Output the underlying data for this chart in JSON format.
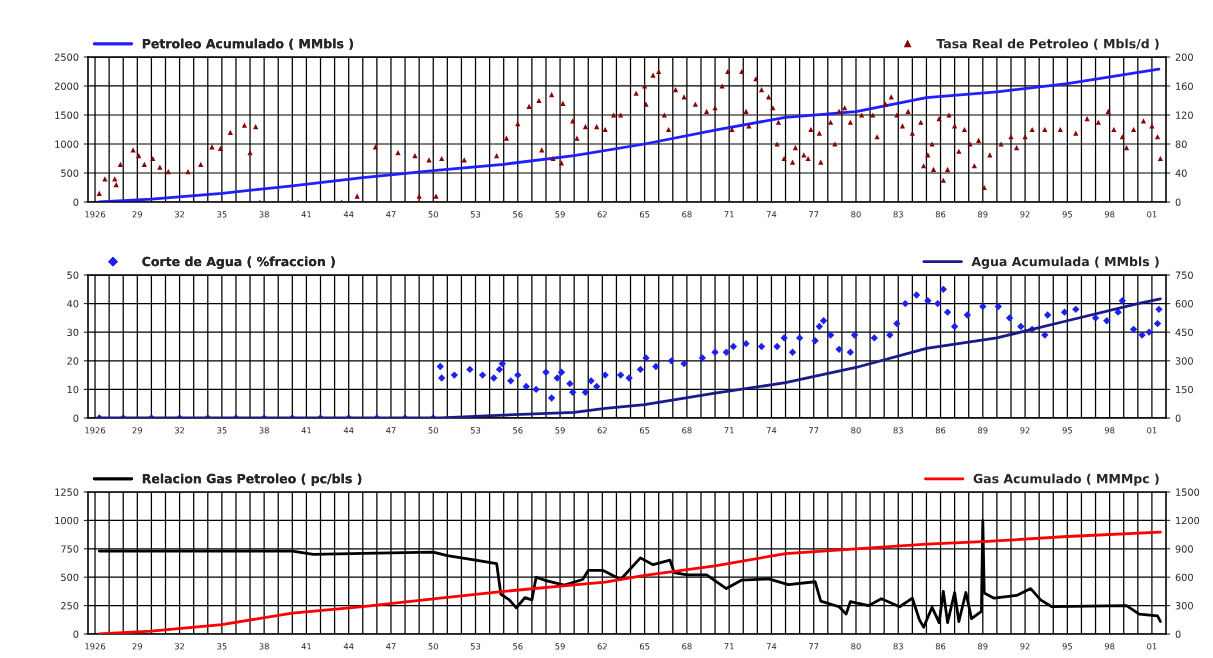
{
  "chart_data": [
    {
      "type": "line",
      "xlim": [
        1925.5,
        2002
      ],
      "ylim": [
        0,
        2500
      ],
      "yticks": [
        0,
        500,
        1000,
        1500,
        2000,
        2500
      ],
      "y2lim": [
        0,
        200
      ],
      "y2ticks": [
        0,
        40,
        80,
        120,
        160,
        200
      ],
      "grid": true,
      "legend": "top",
      "xticks": [
        {
          "value": 1926,
          "label": "1926"
        },
        {
          "value": 1927,
          "label": null
        },
        {
          "value": 1928,
          "label": null
        },
        {
          "value": 1929,
          "label": "29"
        },
        {
          "value": 1930,
          "label": null
        },
        {
          "value": 1931,
          "label": null
        },
        {
          "value": 1932,
          "label": "32"
        },
        {
          "value": 1933,
          "label": null
        },
        {
          "value": 1934,
          "label": null
        },
        {
          "value": 1935,
          "label": "35"
        },
        {
          "value": 1936,
          "label": null
        },
        {
          "value": 1937,
          "label": null
        },
        {
          "value": 1938,
          "label": "38"
        },
        {
          "value": 1939,
          "label": null
        },
        {
          "value": 1940,
          "label": null
        },
        {
          "value": 1941,
          "label": "41"
        },
        {
          "value": 1942,
          "label": null
        },
        {
          "value": 1943,
          "label": null
        },
        {
          "value": 1944,
          "label": "44"
        },
        {
          "value": 1945,
          "label": null
        },
        {
          "value": 1946,
          "label": null
        },
        {
          "value": 1947,
          "label": "47"
        },
        {
          "value": 1948,
          "label": null
        },
        {
          "value": 1949,
          "label": null
        },
        {
          "value": 1950,
          "label": "50"
        },
        {
          "value": 1951,
          "label": null
        },
        {
          "value": 1952,
          "label": null
        },
        {
          "value": 1953,
          "label": "53"
        },
        {
          "value": 1954,
          "label": null
        },
        {
          "value": 1955,
          "label": null
        },
        {
          "value": 1956,
          "label": "56"
        },
        {
          "value": 1957,
          "label": null
        },
        {
          "value": 1958,
          "label": null
        },
        {
          "value": 1959,
          "label": "59"
        },
        {
          "value": 1960,
          "label": null
        },
        {
          "value": 1961,
          "label": null
        },
        {
          "value": 1962,
          "label": "62"
        },
        {
          "value": 1963,
          "label": null
        },
        {
          "value": 1964,
          "label": null
        },
        {
          "value": 1965,
          "label": "65"
        },
        {
          "value": 1966,
          "label": null
        },
        {
          "value": 1967,
          "label": null
        },
        {
          "value": 1968,
          "label": "68"
        },
        {
          "value": 1969,
          "label": null
        },
        {
          "value": 1970,
          "label": null
        },
        {
          "value": 1971,
          "label": "71"
        },
        {
          "value": 1972,
          "label": null
        },
        {
          "value": 1973,
          "label": null
        },
        {
          "value": 1974,
          "label": "74"
        },
        {
          "value": 1975,
          "label": null
        },
        {
          "value": 1976,
          "label": null
        },
        {
          "value": 1977,
          "label": "77"
        },
        {
          "value": 1978,
          "label": null
        },
        {
          "value": 1979,
          "label": null
        },
        {
          "value": 1980,
          "label": "80"
        },
        {
          "value": 1981,
          "label": null
        },
        {
          "value": 1982,
          "label": null
        },
        {
          "value": 1983,
          "label": "83"
        },
        {
          "value": 1984,
          "label": null
        },
        {
          "value": 1985,
          "label": null
        },
        {
          "value": 1986,
          "label": "86"
        },
        {
          "value": 1987,
          "label": null
        },
        {
          "value": 1988,
          "label": null
        },
        {
          "value": 1989,
          "label": "89"
        },
        {
          "value": 1990,
          "label": null
        },
        {
          "value": 1991,
          "label": null
        },
        {
          "value": 1992,
          "label": "92"
        },
        {
          "value": 1993,
          "label": null
        },
        {
          "value": 1994,
          "label": null
        },
        {
          "value": 1995,
          "label": "95"
        },
        {
          "value": 1996,
          "label": null
        },
        {
          "value": 1997,
          "label": null
        },
        {
          "value": 1998,
          "label": "98"
        },
        {
          "value": 1999,
          "label": null
        },
        {
          "value": 2000,
          "label": null
        },
        {
          "value": 2001,
          "label": "01"
        }
      ],
      "series": [
        {
          "name": "Petroleo Acumulado ( MMbls )",
          "color": "#1f1fff",
          "line_style": "solid",
          "x": [
            1926.3,
            1930,
            1935,
            1940,
            1945,
            1950,
            1955,
            1960,
            1965,
            1970,
            1975,
            1980,
            1985,
            1990,
            1995,
            2001.5
          ],
          "values": [
            0,
            50,
            150,
            280,
            420,
            540,
            650,
            800,
            1000,
            1240,
            1460,
            1560,
            1800,
            1900,
            2040,
            2290
          ]
        },
        {
          "name": "Tasa Real de Petroleo ( Mbls/d )",
          "type": "scatter",
          "axis": "y2",
          "color": "#8b0000",
          "marker": "triangle",
          "x": [
            1926.3,
            1926.7,
            1927.4,
            1927.5,
            1927.8,
            1928.7,
            1929.1,
            1929.5,
            1930.1,
            1930.6,
            1931.2,
            1932.6,
            1933.5,
            1934.3,
            1934.9,
            1935.6,
            1936.6,
            1937.0,
            1937.4,
            1937.7,
            1940.4,
            1943.5,
            1944.6,
            1945.9,
            1947.5,
            1948.7,
            1949.0,
            1949.7,
            1950.2,
            1950.6,
            1952.2,
            1954.5,
            1955.2,
            1956.0,
            1956.8,
            1957.5,
            1957.7,
            1958.4,
            1958.5,
            1959.1,
            1959.2,
            1959.9,
            1960.2,
            1960.8,
            1961.6,
            1962.2,
            1962.8,
            1963.3,
            1964.4,
            1965.0,
            1965.1,
            1965.6,
            1966.0,
            1966.4,
            1966.7,
            1967.2,
            1967.8,
            1968.6,
            1969.4,
            1970.0,
            1970.5,
            1970.9,
            1971.2,
            1971.9,
            1972.2,
            1972.4,
            1972.9,
            1973.3,
            1973.8,
            1974.1,
            1974.4,
            1974.5,
            1974.9,
            1975.5,
            1975.7,
            1976.3,
            1976.6,
            1976.8,
            1977.4,
            1977.5,
            1978.2,
            1978.5,
            1978.8,
            1979.2,
            1979.6,
            1980.4,
            1981.2,
            1981.5,
            1982.1,
            1982.5,
            1982.9,
            1983.3,
            1983.7,
            1984.0,
            1984.6,
            1984.8,
            1985.1,
            1985.4,
            1985.5,
            1985.9,
            1986.2,
            1986.5,
            1986.6,
            1987.0,
            1987.3,
            1987.7,
            1988.1,
            1988.4,
            1988.7,
            1989.1,
            1989.5,
            1990.3,
            1991.0,
            1991.4,
            1992.0,
            1992.5,
            1993.4,
            1994.5,
            1995.6,
            1996.4,
            1997.2,
            1997.9,
            1998.3,
            1998.9,
            1999.2,
            1999.7,
            2000.4,
            2001.0,
            2001.4,
            2001.6
          ],
          "values": [
            12,
            32,
            32,
            24,
            52,
            72,
            64,
            52,
            60,
            48,
            42,
            42,
            52,
            76,
            74,
            96,
            106,
            68,
            104,
            0,
            0,
            0,
            8,
            76,
            68,
            64,
            8,
            58,
            8,
            60,
            58,
            64,
            88,
            108,
            132,
            140,
            72,
            148,
            60,
            54,
            136,
            112,
            88,
            104,
            104,
            100,
            120,
            120,
            150,
            160,
            135,
            175,
            180,
            120,
            100,
            155,
            145,
            135,
            125,
            130,
            160,
            180,
            100,
            180,
            125,
            105,
            170,
            155,
            145,
            130,
            80,
            110,
            60,
            55,
            75,
            65,
            60,
            100,
            95,
            55,
            110,
            80,
            125,
            130,
            110,
            120,
            120,
            90,
            135,
            145,
            120,
            105,
            125,
            95,
            110,
            50,
            65,
            80,
            45,
            115,
            30,
            45,
            120,
            105,
            70,
            100,
            80,
            50,
            85,
            20,
            65,
            80,
            90,
            75,
            90,
            100,
            100,
            100,
            95,
            115,
            110,
            125,
            100,
            90,
            75,
            100,
            112,
            105,
            90,
            60
          ]
        }
      ]
    },
    {
      "type": "line",
      "xlim": [
        1925.5,
        2002
      ],
      "ylim": [
        0,
        50
      ],
      "yticks": [
        0,
        10,
        20,
        30,
        40,
        50
      ],
      "y2lim": [
        0,
        750
      ],
      "y2ticks": [
        0,
        150,
        300,
        450,
        600,
        750
      ],
      "grid": true,
      "legend": "top",
      "xticks": [
        {
          "value": 1926,
          "label": "1926"
        },
        {
          "value": 1927,
          "label": null
        },
        {
          "value": 1928,
          "label": null
        },
        {
          "value": 1929,
          "label": "29"
        },
        {
          "value": 1930,
          "label": null
        },
        {
          "value": 1931,
          "label": null
        },
        {
          "value": 1932,
          "label": "32"
        },
        {
          "value": 1933,
          "label": null
        },
        {
          "value": 1934,
          "label": null
        },
        {
          "value": 1935,
          "label": "35"
        },
        {
          "value": 1936,
          "label": null
        },
        {
          "value": 1937,
          "label": null
        },
        {
          "value": 1938,
          "label": "38"
        },
        {
          "value": 1939,
          "label": null
        },
        {
          "value": 1940,
          "label": null
        },
        {
          "value": 1941,
          "label": "41"
        },
        {
          "value": 1942,
          "label": null
        },
        {
          "value": 1943,
          "label": null
        },
        {
          "value": 1944,
          "label": "44"
        },
        {
          "value": 1945,
          "label": null
        },
        {
          "value": 1946,
          "label": null
        },
        {
          "value": 1947,
          "label": "47"
        },
        {
          "value": 1948,
          "label": null
        },
        {
          "value": 1949,
          "label": null
        },
        {
          "value": 1950,
          "label": "50"
        },
        {
          "value": 1951,
          "label": null
        },
        {
          "value": 1952,
          "label": null
        },
        {
          "value": 1953,
          "label": "53"
        },
        {
          "value": 1954,
          "label": null
        },
        {
          "value": 1955,
          "label": null
        },
        {
          "value": 1956,
          "label": "56"
        },
        {
          "value": 1957,
          "label": null
        },
        {
          "value": 1958,
          "label": null
        },
        {
          "value": 1959,
          "label": "59"
        },
        {
          "value": 1960,
          "label": null
        },
        {
          "value": 1961,
          "label": null
        },
        {
          "value": 1962,
          "label": "62"
        },
        {
          "value": 1963,
          "label": null
        },
        {
          "value": 1964,
          "label": null
        },
        {
          "value": 1965,
          "label": "65"
        },
        {
          "value": 1966,
          "label": null
        },
        {
          "value": 1967,
          "label": null
        },
        {
          "value": 1968,
          "label": "68"
        },
        {
          "value": 1969,
          "label": null
        },
        {
          "value": 1970,
          "label": null
        },
        {
          "value": 1971,
          "label": "71"
        },
        {
          "value": 1972,
          "label": null
        },
        {
          "value": 1973,
          "label": null
        },
        {
          "value": 1974,
          "label": "74"
        },
        {
          "value": 1975,
          "label": null
        },
        {
          "value": 1976,
          "label": null
        },
        {
          "value": 1977,
          "label": "77"
        },
        {
          "value": 1978,
          "label": null
        },
        {
          "value": 1979,
          "label": null
        },
        {
          "value": 1980,
          "label": "80"
        },
        {
          "value": 1981,
          "label": null
        },
        {
          "value": 1982,
          "label": null
        },
        {
          "value": 1983,
          "label": "83"
        },
        {
          "value": 1984,
          "label": null
        },
        {
          "value": 1985,
          "label": null
        },
        {
          "value": 1986,
          "label": "86"
        },
        {
          "value": 1987,
          "label": null
        },
        {
          "value": 1988,
          "label": null
        },
        {
          "value": 1989,
          "label": "89"
        },
        {
          "value": 1990,
          "label": null
        },
        {
          "value": 1991,
          "label": null
        },
        {
          "value": 1992,
          "label": "92"
        },
        {
          "value": 1993,
          "label": null
        },
        {
          "value": 1994,
          "label": null
        },
        {
          "value": 1995,
          "label": "95"
        },
        {
          "value": 1996,
          "label": null
        },
        {
          "value": 1997,
          "label": null
        },
        {
          "value": 1998,
          "label": "98"
        },
        {
          "value": 1999,
          "label": null
        },
        {
          "value": 2000,
          "label": null
        },
        {
          "value": 2001,
          "label": "01"
        }
      ],
      "series": [
        {
          "name": "Corte de Agua ( %fraccion )",
          "type": "scatter",
          "color": "#2020ee",
          "marker": "diamond",
          "x": [
            1926.3,
            1928,
            1930,
            1932,
            1934,
            1936,
            1938,
            1940,
            1942,
            1944,
            1946,
            1948,
            1950,
            1950.5,
            1950.6,
            1951.5,
            1952.6,
            1953.5,
            1954.3,
            1954.7,
            1954.9,
            1955.5,
            1956.0,
            1956.6,
            1957.3,
            1958.0,
            1958.4,
            1958.8,
            1959.1,
            1959.7,
            1959.9,
            1960.8,
            1961.2,
            1961.6,
            1962.2,
            1963.3,
            1963.9,
            1964.7,
            1965.1,
            1965.8,
            1966.9,
            1967.8,
            1969.1,
            1970.0,
            1970.8,
            1971.3,
            1972.2,
            1973.3,
            1974.4,
            1974.9,
            1975.5,
            1976.0,
            1977.1,
            1977.4,
            1977.7,
            1978.2,
            1978.8,
            1979.6,
            1979.9,
            1981.3,
            1982.4,
            1982.9,
            1983.5,
            1984.3,
            1985.1,
            1985.8,
            1986.2,
            1986.5,
            1987.0,
            1987.9,
            1989.0,
            1990.1,
            1990.9,
            1991.7,
            1992.5,
            1993.4,
            1993.6,
            1994.8,
            1995.6,
            1997.0,
            1997.8,
            1998.6,
            1998.9,
            1999.7,
            2000.3,
            2000.8,
            2001.4,
            2001.5
          ],
          "values": [
            0,
            0,
            0,
            0,
            0,
            0,
            0,
            0,
            0,
            0,
            0,
            0,
            0,
            18,
            14,
            15,
            17,
            15,
            14,
            17,
            19,
            13,
            15,
            11,
            10,
            16,
            7,
            14,
            16,
            12,
            9,
            9,
            13,
            11,
            15,
            15,
            14,
            17,
            21,
            18,
            20,
            19,
            21,
            23,
            23,
            25,
            26,
            25,
            25,
            28,
            23,
            28,
            27,
            32,
            34,
            29,
            24,
            23,
            29,
            28,
            29,
            33,
            40,
            43,
            41,
            40,
            45,
            37,
            32,
            36,
            39,
            39,
            35,
            32,
            31,
            29,
            36,
            37,
            38,
            35,
            34,
            37,
            41,
            31,
            29,
            30,
            33,
            38
          ]
        },
        {
          "name": "Agua Acumulada ( MMbls )",
          "axis": "y2",
          "color": "#1a1a8c",
          "line_style": "solid",
          "x": [
            1926.3,
            1950.5,
            1955,
            1960,
            1962.2,
            1965,
            1970,
            1975,
            1980,
            1985,
            1990,
            1995,
            2000,
            2001.6
          ],
          "values": [
            0,
            0,
            15,
            30,
            50,
            70,
            130,
            185,
            265,
            365,
            420,
            510,
            600,
            625
          ]
        }
      ]
    },
    {
      "type": "line",
      "xlim": [
        1925.5,
        2002
      ],
      "ylim": [
        0,
        1250
      ],
      "yticks": [
        0,
        250,
        500,
        750,
        1000,
        1250
      ],
      "y2lim": [
        0,
        1500
      ],
      "y2ticks": [
        0,
        300,
        600,
        900,
        1200,
        1500
      ],
      "grid": true,
      "legend": "top",
      "xticks": [
        {
          "value": 1926,
          "label": "1926"
        },
        {
          "value": 1927,
          "label": null
        },
        {
          "value": 1928,
          "label": null
        },
        {
          "value": 1929,
          "label": "29"
        },
        {
          "value": 1930,
          "label": null
        },
        {
          "value": 1931,
          "label": null
        },
        {
          "value": 1932,
          "label": "32"
        },
        {
          "value": 1933,
          "label": null
        },
        {
          "value": 1934,
          "label": null
        },
        {
          "value": 1935,
          "label": "35"
        },
        {
          "value": 1936,
          "label": null
        },
        {
          "value": 1937,
          "label": null
        },
        {
          "value": 1938,
          "label": "38"
        },
        {
          "value": 1939,
          "label": null
        },
        {
          "value": 1940,
          "label": null
        },
        {
          "value": 1941,
          "label": "41"
        },
        {
          "value": 1942,
          "label": null
        },
        {
          "value": 1943,
          "label": null
        },
        {
          "value": 1944,
          "label": "44"
        },
        {
          "value": 1945,
          "label": null
        },
        {
          "value": 1946,
          "label": null
        },
        {
          "value": 1947,
          "label": "47"
        },
        {
          "value": 1948,
          "label": null
        },
        {
          "value": 1949,
          "label": null
        },
        {
          "value": 1950,
          "label": "50"
        },
        {
          "value": 1951,
          "label": null
        },
        {
          "value": 1952,
          "label": null
        },
        {
          "value": 1953,
          "label": "53"
        },
        {
          "value": 1954,
          "label": null
        },
        {
          "value": 1955,
          "label": null
        },
        {
          "value": 1956,
          "label": "56"
        },
        {
          "value": 1957,
          "label": null
        },
        {
          "value": 1958,
          "label": null
        },
        {
          "value": 1959,
          "label": "59"
        },
        {
          "value": 1960,
          "label": null
        },
        {
          "value": 1961,
          "label": null
        },
        {
          "value": 1962,
          "label": "62"
        },
        {
          "value": 1963,
          "label": null
        },
        {
          "value": 1964,
          "label": null
        },
        {
          "value": 1965,
          "label": "65"
        },
        {
          "value": 1966,
          "label": null
        },
        {
          "value": 1967,
          "label": null
        },
        {
          "value": 1968,
          "label": "68"
        },
        {
          "value": 1969,
          "label": null
        },
        {
          "value": 1970,
          "label": null
        },
        {
          "value": 1971,
          "label": "71"
        },
        {
          "value": 1972,
          "label": null
        },
        {
          "value": 1973,
          "label": null
        },
        {
          "value": 1974,
          "label": "74"
        },
        {
          "value": 1975,
          "label": null
        },
        {
          "value": 1976,
          "label": null
        },
        {
          "value": 1977,
          "label": "77"
        },
        {
          "value": 1978,
          "label": null
        },
        {
          "value": 1979,
          "label": null
        },
        {
          "value": 1980,
          "label": "80"
        },
        {
          "value": 1981,
          "label": null
        },
        {
          "value": 1982,
          "label": null
        },
        {
          "value": 1983,
          "label": "83"
        },
        {
          "value": 1984,
          "label": null
        },
        {
          "value": 1985,
          "label": null
        },
        {
          "value": 1986,
          "label": "86"
        },
        {
          "value": 1987,
          "label": null
        },
        {
          "value": 1988,
          "label": null
        },
        {
          "value": 1989,
          "label": "89"
        },
        {
          "value": 1990,
          "label": null
        },
        {
          "value": 1991,
          "label": null
        },
        {
          "value": 1992,
          "label": "92"
        },
        {
          "value": 1993,
          "label": null
        },
        {
          "value": 1994,
          "label": null
        },
        {
          "value": 1995,
          "label": "95"
        },
        {
          "value": 1996,
          "label": null
        },
        {
          "value": 1997,
          "label": null
        },
        {
          "value": 1998,
          "label": "98"
        },
        {
          "value": 1999,
          "label": null
        },
        {
          "value": 2000,
          "label": null
        },
        {
          "value": 2001,
          "label": "01"
        }
      ],
      "series": [
        {
          "name": "Relacion Gas Petroleo ( pc/bls )",
          "color": "#000000",
          "line_style": "solid",
          "x": [
            1926.3,
            1940,
            1941.5,
            1945,
            1950,
            1951,
            1953,
            1954.5,
            1954.8,
            1955.4,
            1955.9,
            1956.5,
            1957,
            1957.3,
            1958,
            1959.3,
            1960.6,
            1961,
            1962,
            1962.2,
            1963.3,
            1964.7,
            1965.6,
            1966.8,
            1967.1,
            1968,
            1969.4,
            1970.8,
            1971.9,
            1973.8,
            1975.2,
            1977.1,
            1977.5,
            1978.8,
            1979.3,
            1979.6,
            1980.9,
            1981.8,
            1983.1,
            1984,
            1984.5,
            1984.8,
            1985.4,
            1985.9,
            1986.2,
            1986.5,
            1987,
            1987.3,
            1987.8,
            1988.2,
            1988.9,
            1989,
            1989.1,
            1989.8,
            1991.4,
            1992.4,
            1993.1,
            1993.9,
            1999.2,
            2000.1,
            2001.4,
            2001.6
          ],
          "values": [
            730,
            730,
            700,
            710,
            720,
            690,
            650,
            620,
            350,
            300,
            230,
            320,
            300,
            500,
            470,
            430,
            480,
            560,
            560,
            550,
            480,
            670,
            610,
            650,
            540,
            520,
            520,
            400,
            475,
            485,
            435,
            460,
            290,
            240,
            175,
            285,
            250,
            310,
            240,
            315,
            125,
            60,
            235,
            100,
            375,
            100,
            365,
            110,
            365,
            135,
            200,
            1000,
            360,
            315,
            340,
            400,
            300,
            240,
            250,
            175,
            160,
            110
          ]
        },
        {
          "name": "Gas Acumulado ( MMMpc )",
          "axis": "y2",
          "color": "#ff0000",
          "line_style": "solid",
          "x": [
            1926.3,
            1930,
            1935,
            1940,
            1945,
            1950,
            1955,
            1960,
            1962.2,
            1965,
            1970,
            1975,
            1980,
            1985,
            1989,
            1995,
            2001.6
          ],
          "values": [
            0,
            30,
            100,
            220,
            290,
            370,
            450,
            520,
            547,
            620,
            720,
            850,
            900,
            950,
            975,
            1030,
            1075
          ]
        }
      ]
    }
  ]
}
